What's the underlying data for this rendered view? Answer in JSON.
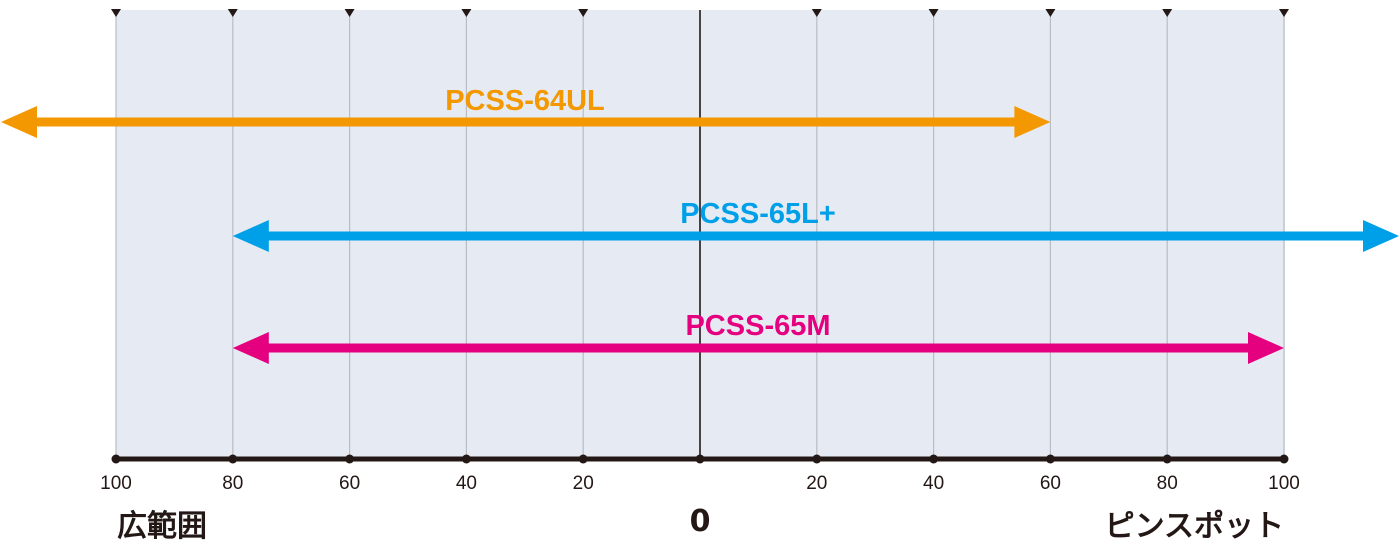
{
  "scale": {
    "tick_values": [
      100,
      80,
      60,
      40,
      20,
      0,
      20,
      40,
      60,
      80,
      100
    ],
    "tick_labels": [
      "100",
      "80",
      "60",
      "40",
      "20",
      "",
      "20",
      "40",
      "60",
      "80",
      "100"
    ],
    "center_label": "0",
    "left_label": "広範囲",
    "right_label": "ピンスポット",
    "left_side": "wide",
    "right_side": "pinpoint"
  },
  "ranges": [
    {
      "label": "PCSS-64UL",
      "color": "#f39800",
      "from": {
        "side": "left",
        "value": 100,
        "extends_beyond": true
      },
      "to": {
        "side": "right",
        "value": 60,
        "extends_beyond": false
      }
    },
    {
      "label": "PCSS-65L+",
      "color": "#00a0e9",
      "from": {
        "side": "left",
        "value": 80,
        "extends_beyond": false
      },
      "to": {
        "side": "right",
        "value": 100,
        "extends_beyond": true
      }
    },
    {
      "label": "PCSS-65M",
      "color": "#e4007f",
      "from": {
        "side": "left",
        "value": 80,
        "extends_beyond": false
      },
      "to": {
        "side": "right",
        "value": 100,
        "extends_beyond": false
      }
    }
  ],
  "colors": {
    "panel_background": "#e6ebf3",
    "grid_line": "#b9bdc3",
    "axis_line": "#231815"
  }
}
